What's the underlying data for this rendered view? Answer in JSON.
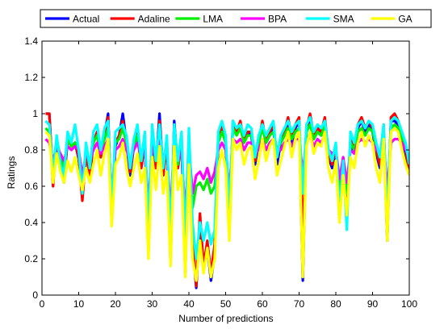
{
  "chart_data": {
    "type": "line",
    "title": "",
    "xlabel": "Number of predictions",
    "ylabel": "Ratings",
    "xlim": [
      0,
      100
    ],
    "ylim": [
      0,
      1.4
    ],
    "xticks": [
      0,
      10,
      20,
      30,
      40,
      50,
      60,
      70,
      80,
      90,
      100
    ],
    "yticks": [
      0,
      0.2,
      0.4,
      0.6,
      0.8,
      1,
      1.2,
      1.4
    ],
    "grid": false,
    "legend": "top-outside",
    "x": [
      1,
      2,
      3,
      4,
      5,
      6,
      7,
      8,
      9,
      10,
      11,
      12,
      13,
      14,
      15,
      16,
      17,
      18,
      19,
      20,
      21,
      22,
      23,
      24,
      25,
      26,
      27,
      28,
      29,
      30,
      31,
      32,
      33,
      34,
      35,
      36,
      37,
      38,
      39,
      40,
      41,
      42,
      43,
      44,
      45,
      46,
      47,
      48,
      49,
      50,
      51,
      52,
      53,
      54,
      55,
      56,
      57,
      58,
      59,
      60,
      61,
      62,
      63,
      64,
      65,
      66,
      67,
      68,
      69,
      70,
      71,
      72,
      73,
      74,
      75,
      76,
      77,
      78,
      79,
      80,
      81,
      82,
      83,
      84,
      85,
      86,
      87,
      88,
      89,
      90,
      91,
      92,
      93,
      94,
      95,
      96,
      97,
      98,
      99,
      100
    ],
    "series": [
      {
        "name": "Actual",
        "color": "#0000ff",
        "values": [
          1.0,
          1.0,
          0.62,
          0.86,
          0.7,
          0.62,
          0.86,
          0.82,
          0.84,
          0.75,
          0.54,
          0.78,
          0.65,
          0.84,
          0.9,
          0.76,
          0.88,
          1.0,
          0.4,
          0.82,
          0.88,
          1.0,
          0.84,
          0.66,
          0.82,
          0.9,
          0.7,
          0.84,
          0.24,
          0.88,
          0.7,
          1.0,
          0.66,
          0.84,
          0.18,
          0.96,
          0.7,
          0.84,
          0.12,
          0.88,
          0.3,
          0.04,
          0.42,
          0.14,
          0.26,
          0.08,
          0.22,
          0.86,
          0.94,
          0.84,
          0.38,
          0.96,
          0.9,
          0.94,
          0.84,
          0.9,
          0.88,
          0.72,
          0.84,
          0.94,
          0.84,
          0.88,
          0.92,
          0.72,
          0.84,
          0.88,
          0.95,
          0.84,
          0.92,
          0.96,
          0.08,
          0.9,
          0.96,
          0.86,
          0.9,
          0.88,
          0.96,
          0.76,
          0.7,
          0.8,
          0.44,
          0.72,
          0.42,
          0.86,
          0.78,
          0.92,
          0.96,
          0.9,
          0.94,
          0.9,
          0.78,
          0.7,
          0.92,
          0.3,
          0.96,
          0.96,
          0.94,
          0.86,
          0.78,
          0.68
        ]
      },
      {
        "name": "Adaline",
        "color": "#ff0000",
        "values": [
          1.0,
          1.0,
          0.6,
          0.86,
          0.72,
          0.64,
          0.86,
          0.82,
          0.84,
          0.76,
          0.52,
          0.78,
          0.66,
          0.84,
          0.9,
          0.76,
          0.88,
          0.98,
          0.42,
          0.84,
          0.88,
          0.96,
          0.84,
          0.68,
          0.82,
          0.9,
          0.7,
          0.84,
          0.3,
          0.88,
          0.7,
          0.96,
          0.66,
          0.84,
          0.24,
          0.94,
          0.7,
          0.84,
          0.2,
          0.88,
          0.32,
          0.05,
          0.45,
          0.16,
          0.3,
          0.12,
          0.28,
          0.86,
          0.94,
          0.84,
          0.4,
          0.96,
          0.9,
          0.96,
          0.84,
          0.9,
          0.9,
          0.74,
          0.84,
          0.96,
          0.84,
          0.9,
          0.94,
          0.76,
          0.84,
          0.9,
          0.98,
          0.86,
          0.94,
          0.98,
          0.3,
          0.92,
          1.0,
          0.88,
          0.92,
          0.9,
          0.98,
          0.78,
          0.72,
          0.82,
          0.5,
          0.74,
          0.46,
          0.86,
          0.8,
          0.94,
          0.98,
          0.92,
          0.96,
          0.92,
          0.8,
          0.72,
          0.94,
          0.34,
          0.98,
          1.0,
          0.96,
          0.88,
          0.8,
          0.68
        ]
      },
      {
        "name": "LMA",
        "color": "#00ee00",
        "values": [
          0.92,
          0.9,
          0.7,
          0.86,
          0.76,
          0.7,
          0.86,
          0.82,
          0.84,
          0.8,
          0.6,
          0.8,
          0.72,
          0.84,
          0.88,
          0.8,
          0.86,
          0.92,
          0.5,
          0.84,
          0.86,
          0.92,
          0.84,
          0.72,
          0.82,
          0.88,
          0.74,
          0.84,
          0.4,
          0.86,
          0.74,
          0.92,
          0.7,
          0.84,
          0.36,
          0.9,
          0.72,
          0.84,
          0.34,
          0.86,
          0.48,
          0.6,
          0.62,
          0.58,
          0.64,
          0.56,
          0.6,
          0.84,
          0.9,
          0.84,
          0.52,
          0.92,
          0.88,
          0.92,
          0.84,
          0.88,
          0.88,
          0.78,
          0.84,
          0.92,
          0.84,
          0.88,
          0.9,
          0.8,
          0.84,
          0.88,
          0.92,
          0.86,
          0.9,
          0.92,
          0.6,
          0.9,
          0.94,
          0.86,
          0.9,
          0.88,
          0.94,
          0.8,
          0.76,
          0.82,
          0.58,
          0.76,
          0.56,
          0.84,
          0.8,
          0.9,
          0.92,
          0.88,
          0.92,
          0.9,
          0.82,
          0.76,
          0.9,
          0.5,
          0.92,
          0.94,
          0.92,
          0.86,
          0.82,
          0.74
        ]
      },
      {
        "name": "BPA",
        "color": "#ff00ff",
        "values": [
          0.86,
          0.84,
          0.74,
          0.82,
          0.78,
          0.74,
          0.82,
          0.8,
          0.82,
          0.8,
          0.66,
          0.78,
          0.74,
          0.8,
          0.84,
          0.78,
          0.82,
          0.86,
          0.56,
          0.8,
          0.82,
          0.86,
          0.8,
          0.74,
          0.8,
          0.84,
          0.76,
          0.8,
          0.5,
          0.82,
          0.76,
          0.86,
          0.74,
          0.8,
          0.46,
          0.84,
          0.74,
          0.8,
          0.44,
          0.82,
          0.56,
          0.66,
          0.68,
          0.64,
          0.7,
          0.62,
          0.68,
          0.8,
          0.84,
          0.8,
          0.58,
          0.86,
          0.84,
          0.86,
          0.8,
          0.84,
          0.84,
          0.78,
          0.8,
          0.86,
          0.8,
          0.84,
          0.86,
          0.8,
          0.8,
          0.84,
          0.86,
          0.82,
          0.86,
          0.86,
          0.68,
          0.84,
          0.88,
          0.82,
          0.86,
          0.84,
          0.88,
          0.8,
          0.78,
          0.8,
          0.64,
          0.76,
          0.62,
          0.8,
          0.78,
          0.84,
          0.86,
          0.84,
          0.86,
          0.84,
          0.8,
          0.78,
          0.84,
          0.58,
          0.84,
          0.86,
          0.86,
          0.84,
          0.8,
          0.76
        ]
      },
      {
        "name": "SMA",
        "color": "#00ffff",
        "values": [
          0.96,
          0.94,
          0.66,
          0.88,
          0.72,
          0.66,
          0.9,
          0.84,
          0.94,
          0.8,
          0.56,
          0.84,
          0.7,
          0.9,
          0.94,
          0.8,
          0.92,
          0.96,
          0.48,
          0.9,
          0.92,
          0.94,
          0.88,
          0.7,
          0.86,
          0.94,
          0.74,
          0.9,
          0.36,
          0.94,
          0.74,
          0.94,
          0.7,
          0.88,
          0.32,
          0.94,
          0.74,
          0.9,
          0.3,
          0.92,
          0.4,
          0.2,
          0.4,
          0.3,
          0.4,
          0.28,
          0.36,
          0.9,
          0.96,
          0.88,
          0.46,
          0.96,
          0.92,
          0.94,
          0.88,
          0.94,
          0.92,
          0.76,
          0.88,
          0.94,
          0.88,
          0.92,
          0.96,
          0.76,
          0.88,
          0.92,
          0.96,
          0.9,
          0.94,
          0.96,
          0.56,
          0.94,
          0.98,
          0.9,
          0.94,
          0.92,
          0.96,
          0.8,
          0.74,
          0.84,
          0.46,
          0.74,
          0.36,
          0.9,
          0.84,
          0.94,
          0.96,
          0.92,
          0.96,
          0.94,
          0.84,
          0.76,
          0.94,
          0.4,
          0.96,
          0.98,
          0.96,
          0.9,
          0.84,
          0.72
        ]
      },
      {
        "name": "GA",
        "color": "#ffff00",
        "values": [
          0.9,
          0.88,
          0.62,
          0.78,
          0.68,
          0.62,
          0.74,
          0.68,
          0.76,
          0.66,
          0.58,
          0.7,
          0.62,
          0.72,
          0.8,
          0.66,
          0.78,
          0.86,
          0.38,
          0.72,
          0.76,
          0.84,
          0.7,
          0.6,
          0.7,
          0.78,
          0.62,
          0.7,
          0.2,
          0.76,
          0.58,
          0.82,
          0.56,
          0.68,
          0.16,
          0.82,
          0.58,
          0.66,
          0.1,
          0.72,
          0.2,
          0.08,
          0.3,
          0.12,
          0.26,
          0.1,
          0.2,
          0.7,
          0.8,
          0.7,
          0.3,
          0.86,
          0.8,
          0.84,
          0.72,
          0.8,
          0.82,
          0.64,
          0.74,
          0.86,
          0.74,
          0.82,
          0.86,
          0.66,
          0.74,
          0.82,
          0.9,
          0.76,
          0.86,
          0.9,
          0.1,
          0.82,
          0.9,
          0.78,
          0.84,
          0.82,
          0.9,
          0.7,
          0.62,
          0.74,
          0.4,
          0.66,
          0.44,
          0.76,
          0.7,
          0.84,
          0.9,
          0.82,
          0.88,
          0.84,
          0.7,
          0.62,
          0.86,
          0.3,
          0.9,
          0.92,
          0.9,
          0.8,
          0.72,
          0.66
        ]
      }
    ]
  }
}
